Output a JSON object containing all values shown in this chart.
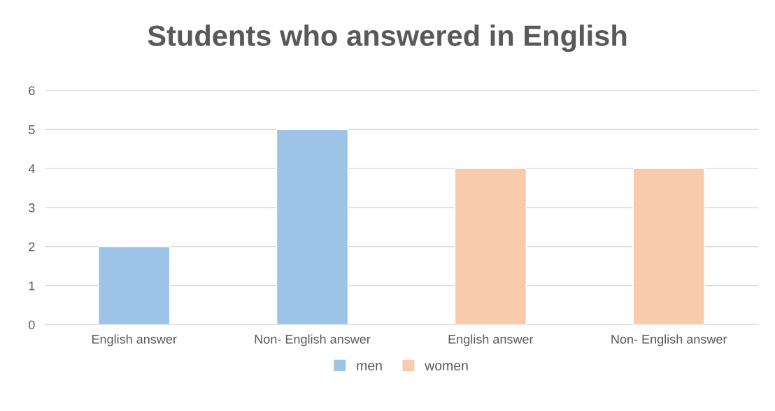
{
  "chart_data": {
    "type": "bar",
    "title": "Students who answered in English",
    "categories": [
      "English answer",
      "Non- English answer",
      "English answer",
      "Non- English answer"
    ],
    "series": [
      {
        "name": "men",
        "color": "#9dc3e6",
        "values": [
          2,
          5,
          null,
          null
        ]
      },
      {
        "name": "women",
        "color": "#f8cbad",
        "values": [
          null,
          null,
          4,
          4
        ]
      }
    ],
    "ylim": [
      0,
      6
    ],
    "yticks": [
      0,
      1,
      2,
      3,
      4,
      5,
      6
    ],
    "grid": "y",
    "legend": "bottom"
  }
}
